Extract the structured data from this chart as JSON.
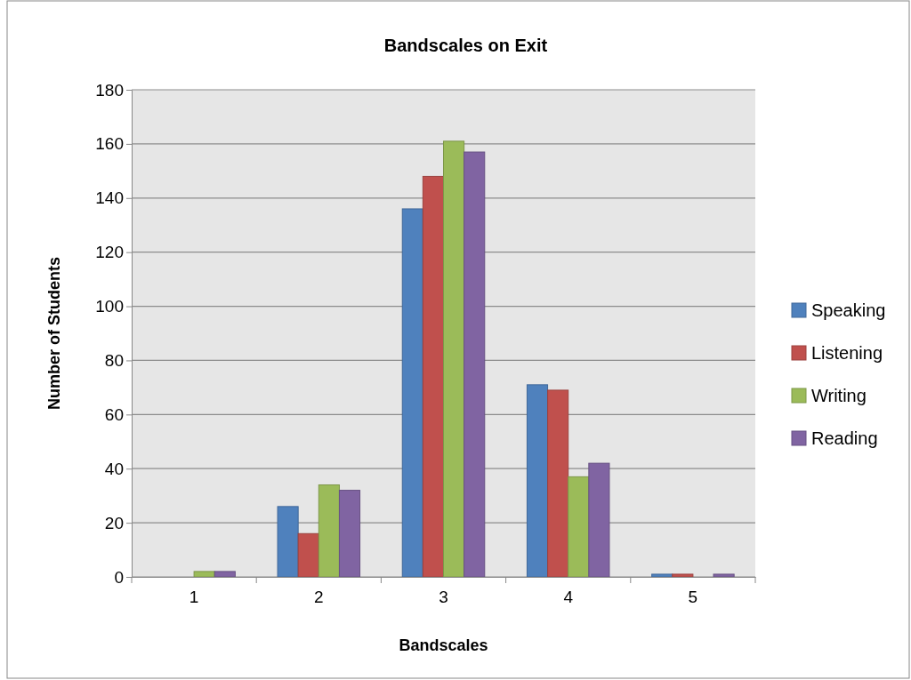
{
  "chart_data": {
    "type": "bar",
    "title": "Bandscales on Exit",
    "xlabel": "Bandscales",
    "ylabel": "Number of Students",
    "categories": [
      "1",
      "2",
      "3",
      "4",
      "5"
    ],
    "series": [
      {
        "name": "Speaking",
        "color": "#4f81bd",
        "values": [
          0,
          26,
          136,
          71,
          1
        ]
      },
      {
        "name": "Listening",
        "color": "#c0504d",
        "values": [
          0,
          16,
          148,
          69,
          1
        ]
      },
      {
        "name": "Writing",
        "color": "#9bbb59",
        "values": [
          2,
          34,
          161,
          37,
          0
        ]
      },
      {
        "name": "Reading",
        "color": "#8064a2",
        "values": [
          2,
          32,
          157,
          42,
          1
        ]
      }
    ],
    "ylim": [
      0,
      180
    ],
    "yticks": [
      0,
      20,
      40,
      60,
      80,
      100,
      120,
      140,
      160,
      180
    ],
    "grid": "y",
    "legend": "right"
  }
}
